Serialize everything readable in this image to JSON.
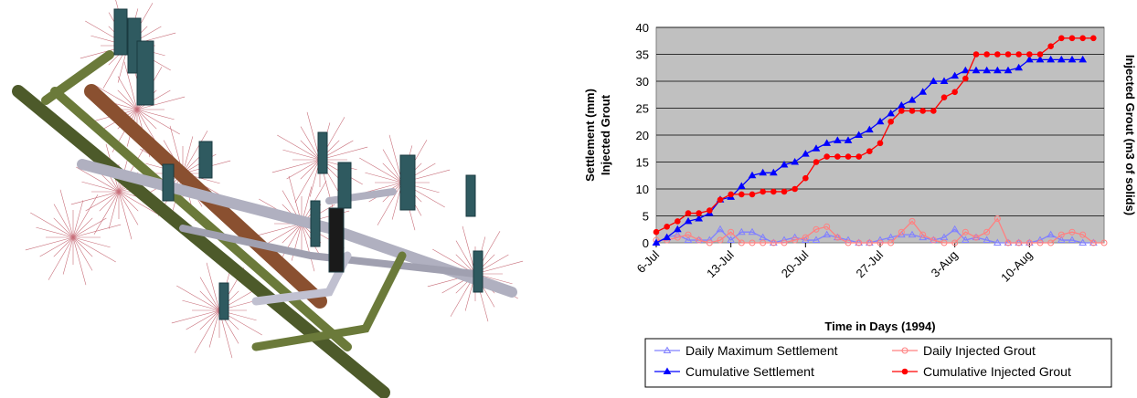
{
  "chart_data": {
    "type": "line",
    "xlabel": "Time in Days (1994)",
    "ylabel": [
      "Settlement (mm)",
      "Injected Grout"
    ],
    "y2label": "Injected Grout (m3 of solids)",
    "ylim": [
      0,
      40
    ],
    "yticks": [
      0,
      5,
      10,
      15,
      20,
      25,
      30,
      35,
      40
    ],
    "xticks": [
      "6-Jul",
      "13-Jul",
      "20-Jul",
      "27-Jul",
      "3-Aug",
      "10-Aug"
    ],
    "x_range_days": [
      0,
      42
    ],
    "grid": true,
    "plot_background": "#c0c0c0",
    "legend_position": "bottom",
    "series": [
      {
        "name": "Daily Maximum Settlement",
        "color": "#8080ff",
        "marker": "open-triangle",
        "points": [
          [
            0,
            0
          ],
          [
            1,
            1
          ],
          [
            2,
            1.5
          ],
          [
            3,
            0.5
          ],
          [
            4,
            0.5
          ],
          [
            5,
            0.5
          ],
          [
            6,
            2.5
          ],
          [
            7,
            0.5
          ],
          [
            8,
            2
          ],
          [
            9,
            2
          ],
          [
            10,
            1
          ],
          [
            11,
            0
          ],
          [
            12,
            0.5
          ],
          [
            13,
            1
          ],
          [
            14,
            0.5
          ],
          [
            15,
            0.5
          ],
          [
            16,
            1.5
          ],
          [
            17,
            1
          ],
          [
            18,
            0.5
          ],
          [
            19,
            0
          ],
          [
            20,
            0
          ],
          [
            21,
            0.5
          ],
          [
            22,
            1
          ],
          [
            23,
            1.5
          ],
          [
            24,
            1.5
          ],
          [
            25,
            1
          ],
          [
            26,
            0.5
          ],
          [
            27,
            1
          ],
          [
            28,
            2.5
          ],
          [
            29,
            0.5
          ],
          [
            30,
            1
          ],
          [
            31,
            0.5
          ],
          [
            32,
            0
          ],
          [
            33,
            0
          ],
          [
            34,
            0
          ],
          [
            35,
            0
          ],
          [
            36,
            0.5
          ],
          [
            37,
            1.5
          ],
          [
            38,
            0.5
          ],
          [
            39,
            0.5
          ],
          [
            40,
            0
          ],
          [
            41,
            0
          ]
        ]
      },
      {
        "name": "Daily Injected Grout",
        "color": "#ff8080",
        "marker": "open-circle",
        "points": [
          [
            0,
            0.5
          ],
          [
            1,
            0.5
          ],
          [
            2,
            1
          ],
          [
            3,
            1.5
          ],
          [
            4,
            0.5
          ],
          [
            5,
            0
          ],
          [
            6,
            0.5
          ],
          [
            7,
            2
          ],
          [
            8,
            0
          ],
          [
            9,
            0
          ],
          [
            10,
            0
          ],
          [
            11,
            0
          ],
          [
            12,
            0
          ],
          [
            13,
            0.5
          ],
          [
            14,
            1
          ],
          [
            15,
            2.5
          ],
          [
            16,
            3
          ],
          [
            17,
            1
          ],
          [
            18,
            0
          ],
          [
            19,
            0
          ],
          [
            20,
            0
          ],
          [
            21,
            0
          ],
          [
            22,
            0
          ],
          [
            23,
            2
          ],
          [
            24,
            4
          ],
          [
            25,
            1.5
          ],
          [
            26,
            0.5
          ],
          [
            27,
            0
          ],
          [
            28,
            0
          ],
          [
            29,
            2
          ],
          [
            30,
            1
          ],
          [
            31,
            2
          ],
          [
            32,
            4.5
          ],
          [
            33,
            0
          ],
          [
            34,
            0
          ],
          [
            35,
            0
          ],
          [
            36,
            0
          ],
          [
            37,
            0
          ],
          [
            38,
            1.5
          ],
          [
            39,
            2
          ],
          [
            40,
            1.5
          ],
          [
            41,
            0
          ],
          [
            42,
            0
          ]
        ]
      },
      {
        "name": "Cumulative Settlement",
        "color": "#0000ff",
        "marker": "filled-triangle",
        "points": [
          [
            0,
            0
          ],
          [
            1,
            1
          ],
          [
            2,
            2.5
          ],
          [
            3,
            4
          ],
          [
            4,
            4.5
          ],
          [
            5,
            5.5
          ],
          [
            6,
            8
          ],
          [
            7,
            8.5
          ],
          [
            8,
            10.5
          ],
          [
            9,
            12.5
          ],
          [
            10,
            13
          ],
          [
            11,
            13
          ],
          [
            12,
            14.5
          ],
          [
            13,
            15
          ],
          [
            14,
            16.5
          ],
          [
            15,
            17.5
          ],
          [
            16,
            18.5
          ],
          [
            17,
            19
          ],
          [
            18,
            19
          ],
          [
            19,
            20
          ],
          [
            20,
            21
          ],
          [
            21,
            22.5
          ],
          [
            22,
            24
          ],
          [
            23,
            25.5
          ],
          [
            24,
            26.5
          ],
          [
            25,
            28
          ],
          [
            26,
            30
          ],
          [
            27,
            30
          ],
          [
            28,
            31
          ],
          [
            29,
            32
          ],
          [
            30,
            32
          ],
          [
            31,
            32
          ],
          [
            32,
            32
          ],
          [
            33,
            32
          ],
          [
            34,
            32.5
          ],
          [
            35,
            34
          ],
          [
            36,
            34
          ],
          [
            37,
            34
          ],
          [
            38,
            34
          ],
          [
            39,
            34
          ],
          [
            40,
            34
          ]
        ]
      },
      {
        "name": "Cumulative Injected Grout",
        "color": "#ff0000",
        "marker": "filled-circle",
        "points": [
          [
            0,
            2
          ],
          [
            1,
            3
          ],
          [
            2,
            4
          ],
          [
            3,
            5.5
          ],
          [
            4,
            5.5
          ],
          [
            5,
            6
          ],
          [
            6,
            8
          ],
          [
            7,
            9
          ],
          [
            8,
            9
          ],
          [
            9,
            9
          ],
          [
            10,
            9.5
          ],
          [
            11,
            9.5
          ],
          [
            12,
            9.5
          ],
          [
            13,
            10
          ],
          [
            14,
            12
          ],
          [
            15,
            15
          ],
          [
            16,
            16
          ],
          [
            17,
            16
          ],
          [
            18,
            16
          ],
          [
            19,
            16
          ],
          [
            20,
            17
          ],
          [
            21,
            18.5
          ],
          [
            22,
            22.5
          ],
          [
            23,
            24.5
          ],
          [
            24,
            24.5
          ],
          [
            25,
            24.5
          ],
          [
            26,
            24.5
          ],
          [
            27,
            27
          ],
          [
            28,
            28
          ],
          [
            29,
            30.5
          ],
          [
            30,
            35
          ],
          [
            31,
            35
          ],
          [
            32,
            35
          ],
          [
            33,
            35
          ],
          [
            34,
            35
          ],
          [
            35,
            35
          ],
          [
            36,
            35
          ],
          [
            37,
            36.5
          ],
          [
            38,
            38
          ],
          [
            39,
            38
          ],
          [
            40,
            38
          ],
          [
            41,
            38
          ]
        ]
      }
    ]
  }
}
